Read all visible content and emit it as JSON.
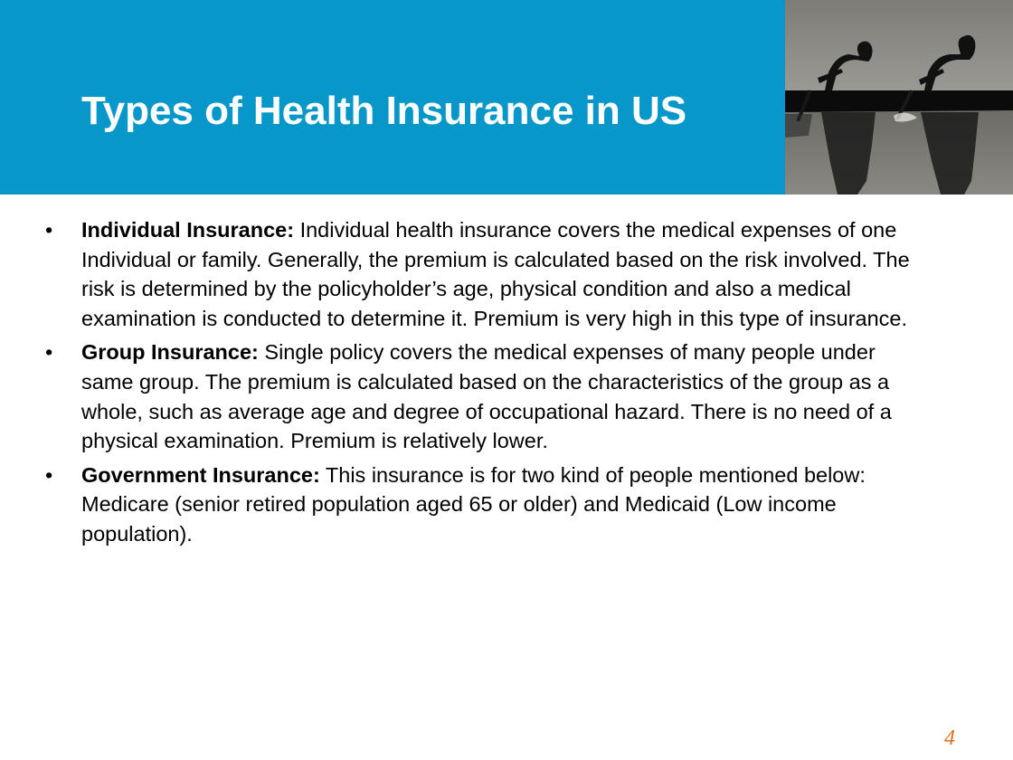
{
  "slide": {
    "title": "Types of Health Insurance in US",
    "page_number": "4"
  },
  "photo": {
    "subject": "rowers-silhouette-photo"
  },
  "bullets": [
    {
      "symbol": "•",
      "term": "Individual Insurance:",
      "text": " Individual health insurance covers the medical expenses of one Individual or family. Generally, the premium is calculated based on the risk involved. The risk is determined by the policyholder’s age, physical condition and also a medical examination is conducted to determine it. Premium is very high in this type of insurance."
    },
    {
      "symbol": "•",
      "term": "Group Insurance:",
      "text": " Single policy covers the medical expenses of many people under same group. The premium is calculated based on the characteristics of the group as a whole, such as average age and degree of occupational hazard.  There is no need of a physical examination. Premium is relatively lower."
    },
    {
      "symbol": "•",
      "term": "Government Insurance:",
      "text": " This insurance is for two kind of people mentioned below: Medicare (senior retired population aged 65 or older) and Medicaid (Low income population)."
    }
  ],
  "colors": {
    "header_band": "#0797c9",
    "title_text": "#ffffff",
    "page_number": "#e0701e"
  }
}
